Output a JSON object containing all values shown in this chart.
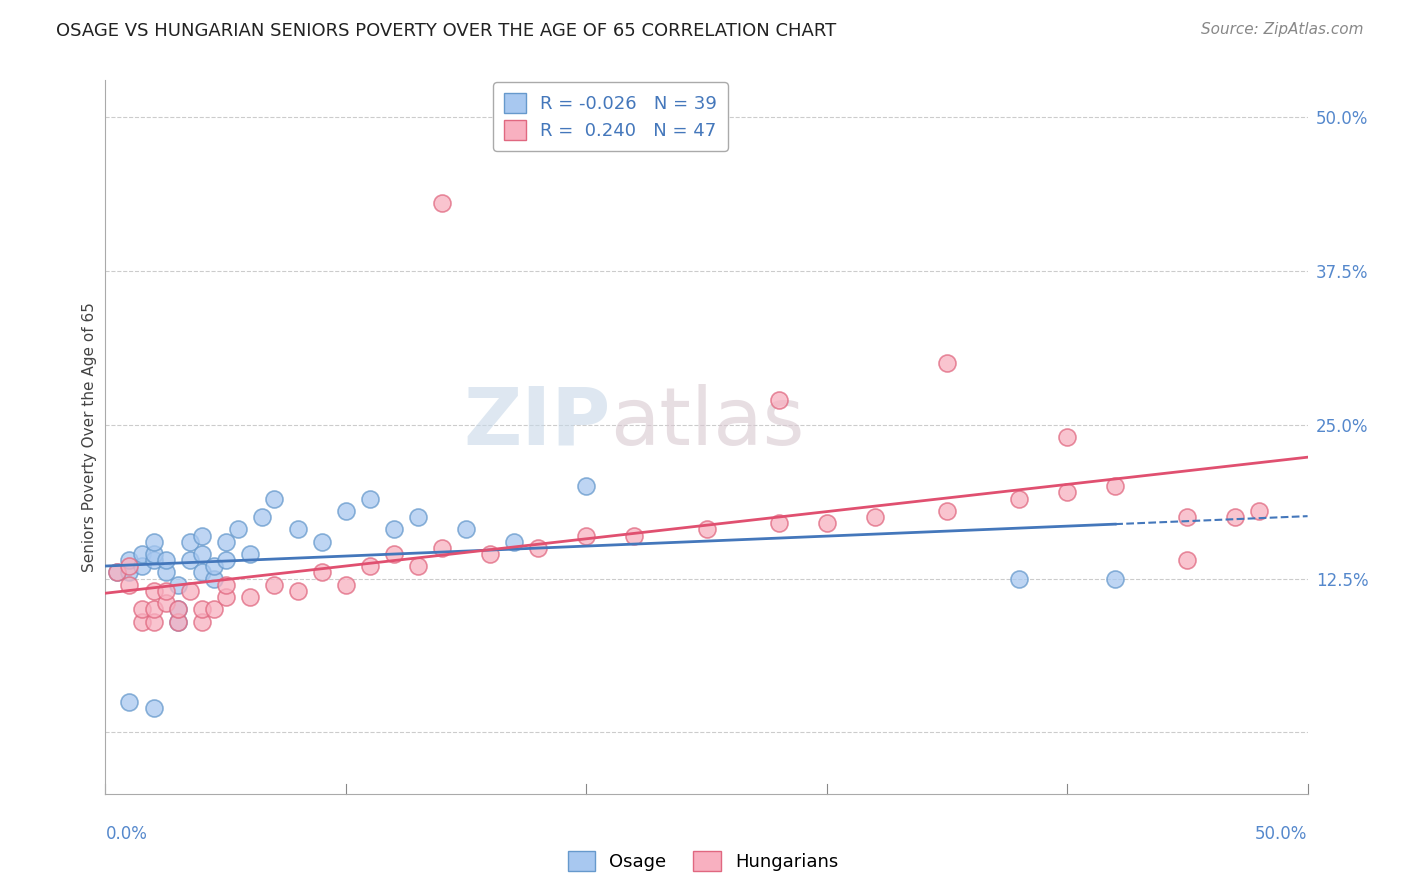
{
  "title": "OSAGE VS HUNGARIAN SENIORS POVERTY OVER THE AGE OF 65 CORRELATION CHART",
  "source": "Source: ZipAtlas.com",
  "ylabel": "Seniors Poverty Over the Age of 65",
  "yticks": [
    0.0,
    0.125,
    0.25,
    0.375,
    0.5
  ],
  "ytick_labels": [
    "",
    "12.5%",
    "25.0%",
    "37.5%",
    "50.0%"
  ],
  "xlim": [
    0.0,
    0.5
  ],
  "ylim": [
    -0.05,
    0.53
  ],
  "legend_label_osage": "Osage",
  "legend_label_hungarians": "Hungarians",
  "watermark_zip": "ZIP",
  "watermark_atlas": "atlas",
  "osage_color": "#a8c8f0",
  "osage_edge": "#6699cc",
  "hungarians_color": "#f8b0c0",
  "hungarians_edge": "#e06880",
  "trend_osage_color": "#4477bb",
  "trend_hungarians_color": "#e05070",
  "osage_x": [
    0.005,
    0.01,
    0.01,
    0.015,
    0.015,
    0.02,
    0.02,
    0.02,
    0.025,
    0.025,
    0.03,
    0.03,
    0.03,
    0.035,
    0.035,
    0.04,
    0.04,
    0.04,
    0.045,
    0.045,
    0.05,
    0.05,
    0.055,
    0.06,
    0.065,
    0.07,
    0.08,
    0.09,
    0.1,
    0.11,
    0.12,
    0.13,
    0.15,
    0.17,
    0.2,
    0.38,
    0.42,
    0.01,
    0.02
  ],
  "osage_y": [
    0.13,
    0.13,
    0.14,
    0.135,
    0.145,
    0.14,
    0.145,
    0.155,
    0.13,
    0.14,
    0.09,
    0.1,
    0.12,
    0.14,
    0.155,
    0.13,
    0.145,
    0.16,
    0.125,
    0.135,
    0.14,
    0.155,
    0.165,
    0.145,
    0.175,
    0.19,
    0.165,
    0.155,
    0.18,
    0.19,
    0.165,
    0.175,
    0.165,
    0.155,
    0.2,
    0.125,
    0.125,
    0.025,
    0.02
  ],
  "hungarians_x": [
    0.005,
    0.01,
    0.01,
    0.015,
    0.015,
    0.02,
    0.02,
    0.02,
    0.025,
    0.025,
    0.03,
    0.03,
    0.035,
    0.04,
    0.04,
    0.045,
    0.05,
    0.05,
    0.06,
    0.07,
    0.08,
    0.09,
    0.1,
    0.11,
    0.12,
    0.13,
    0.14,
    0.16,
    0.18,
    0.2,
    0.22,
    0.25,
    0.28,
    0.3,
    0.32,
    0.35,
    0.38,
    0.4,
    0.42,
    0.45,
    0.47,
    0.48,
    0.14,
    0.28,
    0.35,
    0.4,
    0.45
  ],
  "hungarians_y": [
    0.13,
    0.12,
    0.135,
    0.09,
    0.1,
    0.09,
    0.1,
    0.115,
    0.105,
    0.115,
    0.09,
    0.1,
    0.115,
    0.09,
    0.1,
    0.1,
    0.11,
    0.12,
    0.11,
    0.12,
    0.115,
    0.13,
    0.12,
    0.135,
    0.145,
    0.135,
    0.15,
    0.145,
    0.15,
    0.16,
    0.16,
    0.165,
    0.17,
    0.17,
    0.175,
    0.18,
    0.19,
    0.195,
    0.2,
    0.175,
    0.175,
    0.18,
    0.43,
    0.27,
    0.3,
    0.24,
    0.14
  ],
  "title_fontsize": 13,
  "axis_label_fontsize": 11,
  "tick_fontsize": 12,
  "source_fontsize": 11,
  "legend_r_osage": "R = -0.026",
  "legend_n_osage": "N = 39",
  "legend_r_hung": "R =  0.240",
  "legend_n_hung": "N = 47"
}
